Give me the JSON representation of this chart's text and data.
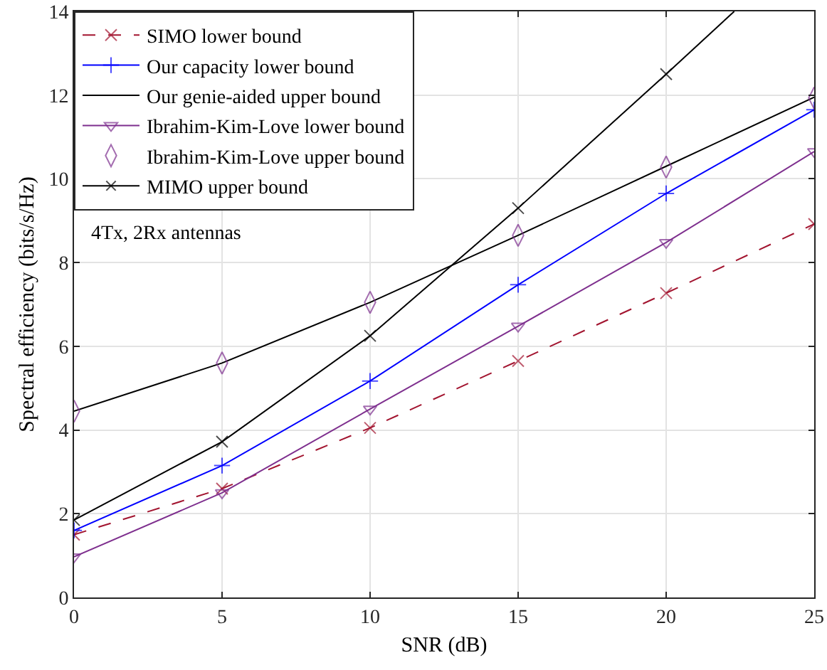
{
  "chart_data": {
    "type": "line",
    "xlabel": "SNR (dB)",
    "ylabel": "Spectral efficiency (bits/s/Hz)",
    "x": [
      0,
      5,
      10,
      15,
      20,
      25
    ],
    "xlim": [
      0,
      25
    ],
    "xticks": [
      0,
      5,
      10,
      15,
      20,
      25
    ],
    "ylim": [
      0,
      14
    ],
    "yticks": [
      0,
      2,
      4,
      6,
      8,
      10,
      12,
      14
    ],
    "grid": true,
    "legend": "top left",
    "annotations": [
      "4Tx, 2Rx antennas"
    ],
    "series": [
      {
        "name": "SIMO lower bound",
        "color": "#a2142f",
        "marker": "cross",
        "line_style": "dashed",
        "values": [
          1.5,
          2.6,
          4.05,
          5.65,
          7.27,
          8.92
        ]
      },
      {
        "name": "Our capacity lower bound",
        "color": "#0000ff",
        "marker": "plus",
        "line_style": "solid",
        "values": [
          1.6,
          3.15,
          5.17,
          7.47,
          9.65,
          11.65
        ]
      },
      {
        "name": "Our genie-aided upper bound",
        "color": "#000000",
        "marker": "none",
        "line_style": "solid",
        "values": [
          4.45,
          5.6,
          7.05,
          8.65,
          10.3,
          11.95
        ]
      },
      {
        "name": "Ibrahim-Kim-Love lower bound",
        "color": "#7e2f8e",
        "marker": "triangle",
        "line_style": "solid",
        "values": [
          0.97,
          2.5,
          4.5,
          6.48,
          8.48,
          10.65
        ]
      },
      {
        "name": "Ibrahim-Kim-Love upper bound",
        "color": "#7e2f8e",
        "type": "scatter",
        "marker": "diamond",
        "values": [
          4.45,
          5.6,
          7.05,
          8.65,
          10.28,
          11.93
        ]
      },
      {
        "name": "MIMO upper bound",
        "color": "#000000",
        "marker": "cross",
        "line_style": "solid",
        "x": [
          0,
          5,
          10,
          15,
          20,
          22.3
        ],
        "values": [
          1.85,
          3.72,
          6.25,
          9.3,
          12.5,
          14
        ]
      }
    ]
  }
}
